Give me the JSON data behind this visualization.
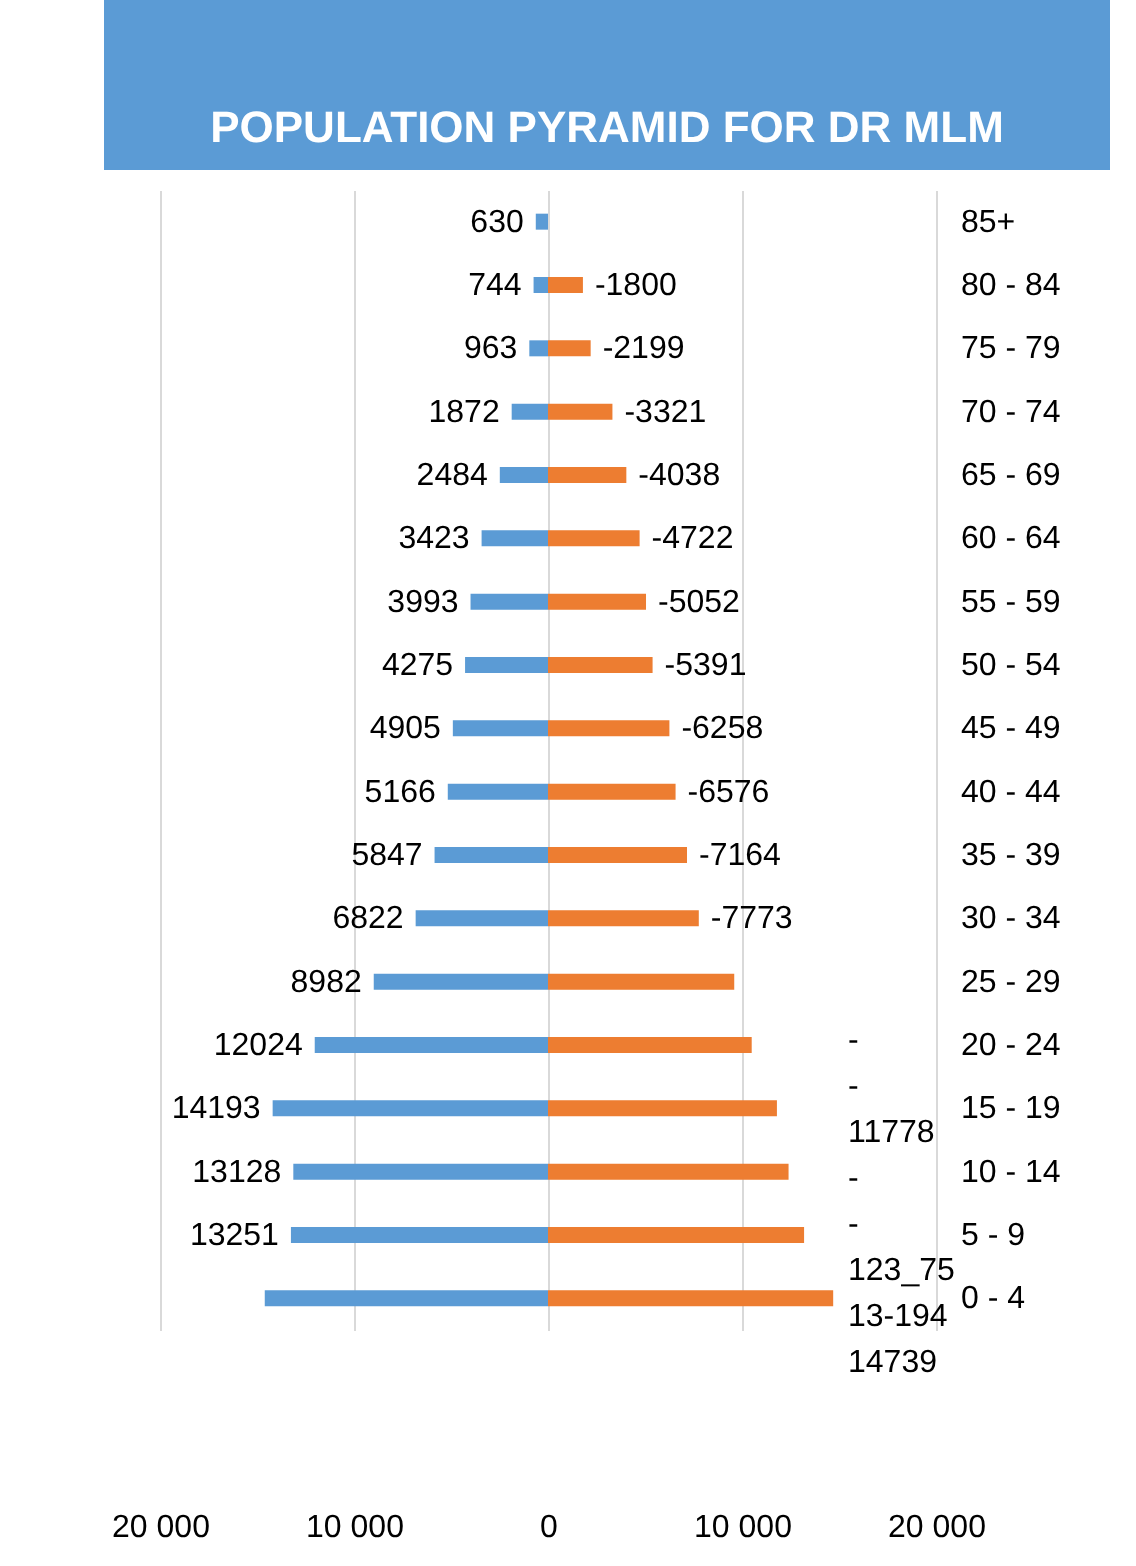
{
  "chart_data": {
    "type": "bar",
    "orientation": "horizontal",
    "stacked": true,
    "title": "POPULATION PYRAMID FOR DR MLM",
    "categories": [
      "85+",
      "80 - 84",
      "75 - 79",
      "70 - 74",
      "65 - 69",
      "60 - 64",
      "55 - 59",
      "50 - 54",
      "45 - 49",
      "40 - 44",
      "35 - 39",
      "30 - 34",
      "25 - 29",
      "20 - 24",
      "15 - 19",
      "10 - 14",
      "5 - 9",
      "0 - 4"
    ],
    "series": [
      {
        "color": "#5b9bd5",
        "values": [
          630,
          744,
          963,
          1872,
          2484,
          3423,
          3993,
          4275,
          4905,
          5166,
          5847,
          6822,
          8982,
          12024,
          14193,
          13128,
          13251,
          14600
        ],
        "value_labels": [
          "630",
          "744",
          "963",
          "1872",
          "2484",
          "3423",
          "3993",
          "4275",
          "4905",
          "5166",
          "5847",
          "6822",
          "8982",
          "12024",
          "14193",
          "13128",
          "13251",
          null
        ]
      },
      {
        "color": "#ed7d31",
        "values": [
          null,
          -1800,
          -2199,
          -3321,
          -4038,
          -4722,
          -5052,
          -5391,
          -6258,
          -6576,
          -7164,
          -7773,
          -9600,
          -10500,
          -11800,
          -12400,
          -13200,
          -14700
        ],
        "value_labels": [
          null,
          "-1800",
          "-2199",
          "-3321",
          "-4038",
          "-4722",
          "-5052",
          "-5391",
          "-6258",
          "-6576",
          "-7164",
          "-7773",
          null,
          null,
          null,
          null,
          null,
          null
        ]
      }
    ],
    "annotations": [
      "-",
      "-",
      "11778",
      "-",
      "-",
      "123_75",
      "13-194",
      "14739"
    ],
    "xlim": [
      20000,
      -20000
    ],
    "xticks": [
      {
        "value": 20000,
        "label": "20 000"
      },
      {
        "value": 10000,
        "label": "10 000"
      },
      0,
      {
        "value": -10000,
        "label": "10 000"
      },
      {
        "value": -20000,
        "label": "20 000"
      }
    ],
    "grid": "x"
  }
}
